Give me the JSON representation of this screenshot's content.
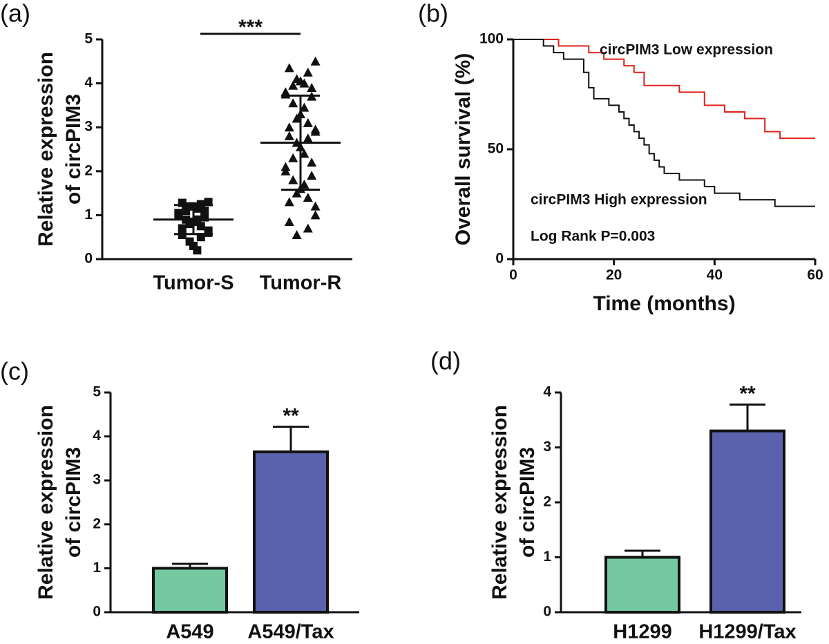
{
  "chart_data": [
    {
      "type": "dot",
      "panel_label": "(a)",
      "ylabel": [
        "Relative expression",
        "of circPIM3"
      ],
      "categories": [
        "Tumor-S",
        "Tumor-R"
      ],
      "points": [
        [
          1.3,
          1.28,
          1.25,
          1.2,
          1.2,
          1.15,
          1.1,
          1.1,
          1.05,
          1.0,
          0.95,
          0.9,
          0.9,
          0.85,
          0.8,
          0.75,
          0.7,
          0.65,
          0.6,
          0.55,
          0.5,
          0.4,
          0.3,
          0.2
        ],
        [
          4.5,
          4.35,
          4.25,
          4.1,
          4.05,
          4.0,
          3.95,
          3.9,
          3.8,
          3.75,
          3.7,
          3.55,
          3.45,
          3.3,
          3.2,
          3.1,
          3.0,
          2.95,
          2.9,
          2.8,
          2.75,
          2.65,
          2.55,
          2.4,
          2.3,
          2.2,
          2.1,
          2.0,
          1.9,
          1.8,
          1.7,
          1.6,
          1.5,
          1.4,
          1.3,
          1.2,
          1.0,
          0.85,
          0.7,
          0.55
        ]
      ],
      "markers": [
        "square",
        "triangle"
      ],
      "means": [
        0.9,
        2.65
      ],
      "sd": [
        0.33,
        1.07
      ],
      "annotation": "***",
      "ylim": [
        0,
        5
      ],
      "yticks": [
        0,
        1,
        2,
        3,
        4,
        5
      ]
    },
    {
      "type": "line",
      "panel_label": "(b)",
      "ylabel": "Overall survival (%)",
      "xlabel": "Time (months)",
      "series": [
        {
          "name": "circPIM3 Low expression",
          "color": "#e0211d",
          "x": [
            0,
            9,
            9,
            15,
            15,
            18,
            18,
            22,
            22,
            24,
            24,
            26,
            26,
            33,
            33,
            38,
            38,
            42,
            42,
            46,
            46,
            50,
            50,
            53,
            53,
            60
          ],
          "values": [
            100,
            100,
            97,
            97,
            94,
            94,
            91,
            91,
            88,
            88,
            85,
            85,
            79,
            79,
            76,
            76,
            70,
            70,
            67,
            67,
            64,
            64,
            58,
            58,
            55,
            55
          ]
        },
        {
          "name": "circPIM3 High expression",
          "color": "#111111",
          "x": [
            0,
            6,
            6,
            8,
            8,
            10,
            10,
            14,
            14,
            15,
            15,
            16,
            16,
            19,
            19,
            21,
            21,
            22,
            22,
            23,
            23,
            24,
            24,
            25,
            25,
            26,
            26,
            27,
            27,
            28,
            28,
            29,
            29,
            30,
            30,
            33,
            33,
            38,
            38,
            40,
            40,
            45,
            45,
            52,
            52,
            60
          ],
          "values": [
            100,
            100,
            97,
            97,
            94,
            94,
            91,
            91,
            85,
            85,
            78,
            78,
            73,
            73,
            70,
            70,
            67,
            67,
            64,
            64,
            61,
            61,
            58,
            58,
            55,
            55,
            52,
            52,
            48,
            48,
            45,
            45,
            42,
            42,
            39,
            39,
            36,
            36,
            33,
            33,
            30,
            30,
            27,
            27,
            24,
            24
          ]
        }
      ],
      "annotation": "Log Rank P=0.003",
      "xlim": [
        0,
        60
      ],
      "xticks": [
        0,
        20,
        40,
        60
      ],
      "ylim": [
        0,
        100
      ],
      "yticks": [
        0,
        50,
        100
      ]
    },
    {
      "type": "bar",
      "panel_label": "(c)",
      "ylabel": [
        "Relative expression",
        "of circPIM3"
      ],
      "categories": [
        "A549",
        "A549/Tax"
      ],
      "values": [
        1.0,
        3.65
      ],
      "errors": [
        0.1,
        0.57
      ],
      "colors": [
        "#74c9a0",
        "#5a62ad"
      ],
      "annotation": "**",
      "ylim": [
        0,
        5
      ],
      "yticks": [
        0,
        1,
        2,
        3,
        4,
        5
      ]
    },
    {
      "type": "bar",
      "panel_label": "(d)",
      "ylabel": [
        "Relative expression",
        "of circPIM3"
      ],
      "categories": [
        "H1299",
        "H1299/Tax"
      ],
      "values": [
        1.0,
        3.3
      ],
      "errors": [
        0.12,
        0.48
      ],
      "colors": [
        "#74c9a0",
        "#5a62ad"
      ],
      "annotation": "**",
      "ylim": [
        0,
        4
      ],
      "yticks": [
        0,
        1,
        2,
        3,
        4
      ]
    }
  ]
}
